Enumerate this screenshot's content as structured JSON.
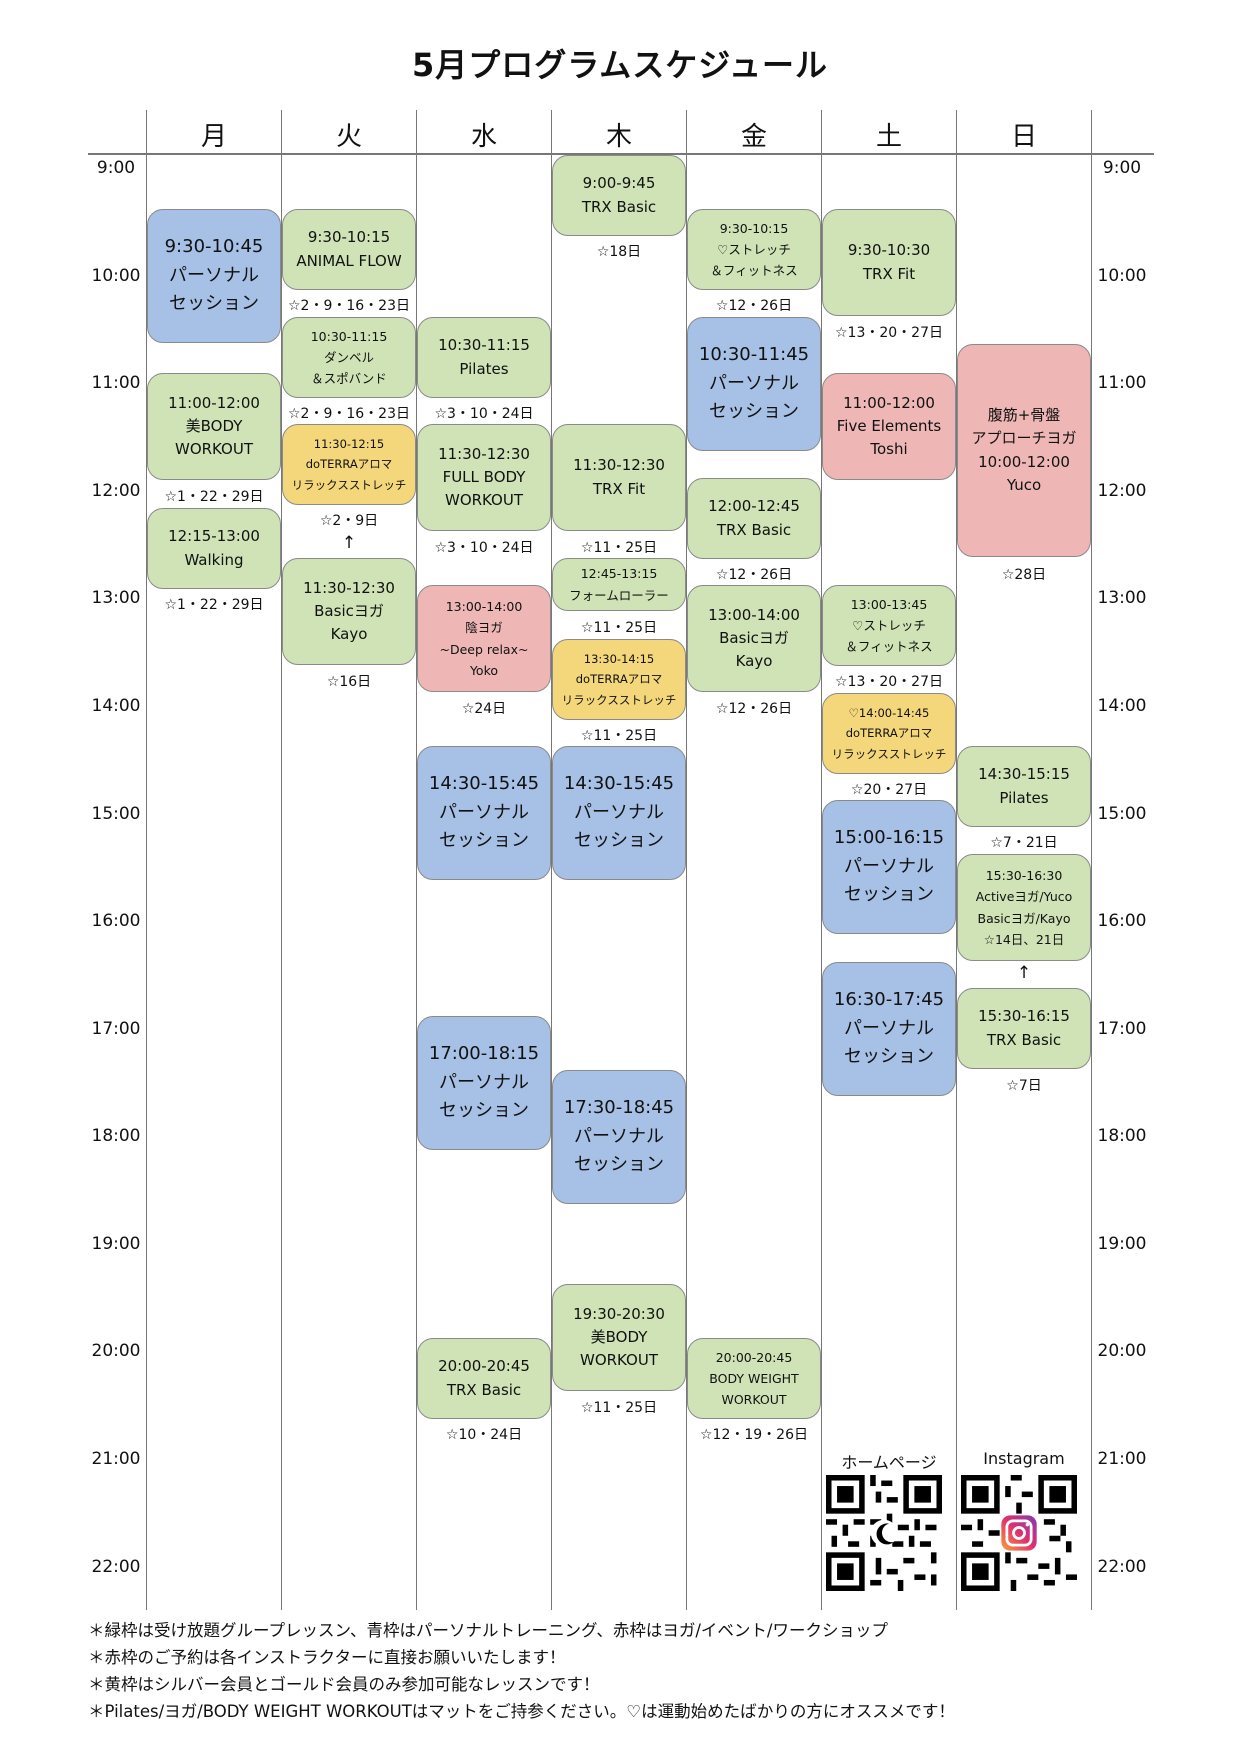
{
  "title": "5月プログラムスケジュール",
  "days": [
    "月",
    "火",
    "水",
    "木",
    "金",
    "土",
    "日"
  ],
  "times": [
    "9:00",
    "10:00",
    "11:00",
    "12:00",
    "13:00",
    "14:00",
    "15:00",
    "16:00",
    "17:00",
    "18:00",
    "19:00",
    "20:00",
    "21:00",
    "22:00"
  ],
  "qr": {
    "homepage_label": "ホームページ",
    "instagram_label": "Instagram"
  },
  "footer": [
    "＊緑枠は受け放題グループレッスン、青枠はパーソナルトレーニング、赤枠はヨガ/イベント/ワークショップ",
    "＊赤枠のご予約は各インストラクターに直接お願いいたします！",
    "＊黄枠はシルバー会員とゴールド会員のみ参加可能なレッスンです！",
    "＊Pilates/ヨガ/BODY WEIGHT WORKOUTはマットをご持参ください。♡は運動始めたばかりの方にオススメです！"
  ],
  "colors": {
    "group": "#cfe3b6",
    "personal": "#a7c0e5",
    "yoga_event": "#eeb7b6",
    "member_only": "#f4d77a"
  },
  "blocks": {
    "mon": [
      {
        "time": "9:30-10:45",
        "lines": [
          "パーソナル",
          "セッション"
        ]
      },
      {
        "time": "11:00-12:00",
        "lines": [
          "美BODY",
          "WORKOUT"
        ],
        "note": "☆1・22・29日"
      },
      {
        "time": "12:15-13:00",
        "lines": [
          "Walking"
        ],
        "note": "☆1・22・29日"
      }
    ],
    "tue": [
      {
        "time": "9:30-10:15",
        "lines": [
          "ANIMAL FLOW"
        ],
        "note": "☆2・9・16・23日"
      },
      {
        "time": "10:30-11:15",
        "lines": [
          "ダンベル",
          "＆スポバンド"
        ],
        "note": "☆2・9・16・23日"
      },
      {
        "time": "11:30-12:15",
        "lines": [
          "doTERRAアロマ",
          "リラックスストレッチ"
        ],
        "note": "☆2・9日",
        "arrow": "↑"
      },
      {
        "time": "11:30-12:30",
        "lines": [
          "Basicヨガ",
          "Kayo"
        ],
        "note": "☆16日"
      }
    ],
    "wed": [
      {
        "time": "10:30-11:15",
        "lines": [
          "Pilates"
        ],
        "note": "☆3・10・24日"
      },
      {
        "time": "11:30-12:30",
        "lines": [
          "FULL BODY",
          "WORKOUT"
        ],
        "note": "☆3・10・24日"
      },
      {
        "time": "13:00-14:00",
        "lines": [
          "陰ヨガ",
          "~Deep relax~",
          "Yoko"
        ],
        "note": "☆24日"
      },
      {
        "time": "14:30-15:45",
        "lines": [
          "パーソナル",
          "セッション"
        ]
      },
      {
        "time": "17:00-18:15",
        "lines": [
          "パーソナル",
          "セッション"
        ]
      },
      {
        "time": "20:00-20:45",
        "lines": [
          "TRX Basic"
        ],
        "note": "☆10・24日"
      }
    ],
    "thu": [
      {
        "time": "9:00-9:45",
        "lines": [
          "TRX Basic"
        ],
        "note": "☆18日"
      },
      {
        "time": "11:30-12:30",
        "lines": [
          "TRX Fit"
        ],
        "note": "☆11・25日"
      },
      {
        "time": "12:45-13:15",
        "lines": [
          "フォームローラー"
        ],
        "note": "☆11・25日"
      },
      {
        "time": "13:30-14:15",
        "lines": [
          "doTERRAアロマ",
          "リラックスストレッチ"
        ],
        "note": "☆11・25日"
      },
      {
        "time": "14:30-15:45",
        "lines": [
          "パーソナル",
          "セッション"
        ]
      },
      {
        "time": "17:30-18:45",
        "lines": [
          "パーソナル",
          "セッション"
        ]
      },
      {
        "time": "19:30-20:30",
        "lines": [
          "美BODY",
          "WORKOUT"
        ],
        "note": "☆11・25日"
      }
    ],
    "fri": [
      {
        "time": "9:30-10:15",
        "lines": [
          "♡ストレッチ",
          "＆フィットネス"
        ],
        "note": "☆12・26日"
      },
      {
        "time": "10:30-11:45",
        "lines": [
          "パーソナル",
          "セッション"
        ]
      },
      {
        "time": "12:00-12:45",
        "lines": [
          "TRX Basic"
        ],
        "note": "☆12・26日"
      },
      {
        "time": "13:00-14:00",
        "lines": [
          "Basicヨガ",
          "Kayo"
        ],
        "note": "☆12・26日"
      },
      {
        "time": "20:00-20:45",
        "lines": [
          "BODY WEIGHT",
          "WORKOUT"
        ],
        "note": "☆12・19・26日"
      }
    ],
    "sat": [
      {
        "time": "9:30-10:30",
        "lines": [
          "TRX Fit"
        ],
        "note": "☆13・20・27日"
      },
      {
        "time": "11:00-12:00",
        "lines": [
          "Five Elements",
          "Toshi"
        ]
      },
      {
        "time": "13:00-13:45",
        "lines": [
          "♡ストレッチ",
          "＆フィットネス"
        ],
        "note": "☆13・20・27日"
      },
      {
        "time": "♡14:00-14:45",
        "lines": [
          "doTERRAアロマ",
          "リラックスストレッチ"
        ],
        "note": "☆20・27日"
      },
      {
        "time": "15:00-16:15",
        "lines": [
          "パーソナル",
          "セッション"
        ]
      },
      {
        "time": "16:30-17:45",
        "lines": [
          "パーソナル",
          "セッション"
        ]
      }
    ],
    "sun": [
      {
        "time": "腹筋+骨盤",
        "lines": [
          "アプローチヨガ",
          "10:00-12:00",
          "Yuco"
        ],
        "note": "☆28日"
      },
      {
        "time": "14:30-15:15",
        "lines": [
          "Pilates"
        ],
        "note": "☆7・21日"
      },
      {
        "time": "15:30-16:30",
        "lines": [
          "Activeヨガ/Yuco",
          "Basicヨガ/Kayo",
          "☆14日、21日"
        ],
        "arrow": "↑"
      },
      {
        "time": "15:30-16:15",
        "lines": [
          "TRX Basic"
        ],
        "note": "☆7日"
      }
    ]
  }
}
